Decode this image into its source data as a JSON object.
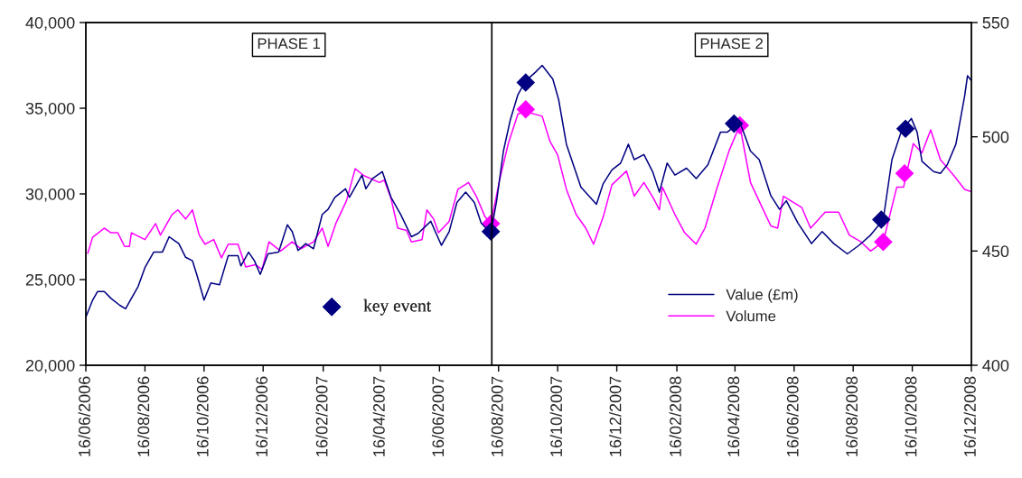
{
  "chart_data": {
    "type": "line",
    "annotations": [
      "PHASE 1",
      "PHASE 2"
    ],
    "legend": "bottom right",
    "grid": false,
    "ref_lines": [
      {
        "axis": "x",
        "value": "2007-08-09",
        "color": "#000000"
      }
    ],
    "xlim": [
      "2006-06-16",
      "2008-12-16"
    ],
    "xticks": [
      {
        "value": "2006-06-16",
        "label": "16/06/2006"
      },
      {
        "value": "2006-08-16",
        "label": "16/08/2006"
      },
      {
        "value": "2006-10-16",
        "label": "16/10/2006"
      },
      {
        "value": "2006-12-16",
        "label": "16/12/2006"
      },
      {
        "value": "2007-02-16",
        "label": "16/02/2007"
      },
      {
        "value": "2007-04-16",
        "label": "16/04/2007"
      },
      {
        "value": "2007-06-16",
        "label": "16/06/2007"
      },
      {
        "value": "2007-08-16",
        "label": "16/08/2007"
      },
      {
        "value": "2007-10-16",
        "label": "16/10/2007"
      },
      {
        "value": "2007-12-16",
        "label": "16/12/2007"
      },
      {
        "value": "2008-02-16",
        "label": "16/02/2008"
      },
      {
        "value": "2008-04-16",
        "label": "16/04/2008"
      },
      {
        "value": "2008-06-16",
        "label": "16/06/2008"
      },
      {
        "value": "2008-08-16",
        "label": "16/08/2008"
      },
      {
        "value": "2008-10-16",
        "label": "16/10/2008"
      },
      {
        "value": "2008-12-16",
        "label": "16/12/2008"
      }
    ],
    "ylim": [
      20000,
      40000
    ],
    "yticks": [
      {
        "value": 20000,
        "label": "20,000"
      },
      {
        "value": 25000,
        "label": "25,000"
      },
      {
        "value": 30000,
        "label": "30,000"
      },
      {
        "value": 35000,
        "label": "35,000"
      },
      {
        "value": 40000,
        "label": "40,000"
      }
    ],
    "y2lim": [
      400,
      550
    ],
    "y2ticks": [
      400,
      450,
      500,
      550
    ],
    "series": [
      {
        "name": "Value (£m)",
        "axis": "y",
        "color": "#000080",
        "x": [
          "2006-06-16",
          "2006-06-23",
          "2006-06-28",
          "2006-07-05",
          "2006-07-12",
          "2006-07-21",
          "2006-07-27",
          "2006-08-02",
          "2006-08-09",
          "2006-08-16",
          "2006-08-25",
          "2006-09-03",
          "2006-09-10",
          "2006-09-15",
          "2006-09-20",
          "2006-09-27",
          "2006-10-04",
          "2006-10-09",
          "2006-10-16",
          "2006-10-23",
          "2006-11-01",
          "2006-11-10",
          "2006-11-20",
          "2006-11-23",
          "2006-12-01",
          "2006-12-07",
          "2006-12-13",
          "2006-12-21",
          "2007-01-01",
          "2007-01-10",
          "2007-01-15",
          "2007-01-21",
          "2007-01-29",
          "2007-02-06",
          "2007-02-15",
          "2007-02-21",
          "2007-02-28",
          "2007-03-11",
          "2007-03-15",
          "2007-03-28",
          "2007-04-01",
          "2007-04-08",
          "2007-04-18",
          "2007-04-27",
          "2007-05-07",
          "2007-05-18",
          "2007-05-25",
          "2007-06-07",
          "2007-06-18",
          "2007-06-26",
          "2007-07-04",
          "2007-07-13",
          "2007-07-22",
          "2007-07-29",
          "2007-08-08",
          "2007-08-14",
          "2007-08-21",
          "2007-08-28",
          "2007-09-05",
          "2007-09-13",
          "2007-09-23",
          "2007-09-30",
          "2007-10-11",
          "2007-10-17",
          "2007-10-25",
          "2007-11-09",
          "2007-11-25",
          "2007-12-02",
          "2007-12-11",
          "2007-12-20",
          "2007-12-28",
          "2008-01-03",
          "2008-01-13",
          "2008-01-22",
          "2008-01-29",
          "2008-02-06",
          "2008-02-14",
          "2008-02-26",
          "2008-03-07",
          "2008-03-19",
          "2008-04-01",
          "2008-04-08",
          "2008-04-21",
          "2008-05-02",
          "2008-05-11",
          "2008-05-23",
          "2008-06-01",
          "2008-06-08",
          "2008-06-20",
          "2008-07-04",
          "2008-07-15",
          "2008-07-27",
          "2008-08-10",
          "2008-08-22",
          "2008-09-03",
          "2008-09-16",
          "2008-09-25",
          "2008-10-05",
          "2008-10-15",
          "2008-10-21",
          "2008-10-26",
          "2008-11-07",
          "2008-11-14",
          "2008-11-21",
          "2008-11-30",
          "2008-12-09",
          "2008-12-12",
          "2008-12-16"
        ],
        "values": [
          22800,
          23800,
          24300,
          24300,
          23900,
          23500,
          23300,
          23900,
          24600,
          25700,
          26600,
          26600,
          27500,
          27300,
          27100,
          26300,
          26100,
          25200,
          23800,
          24800,
          24700,
          26400,
          26400,
          25800,
          26600,
          26100,
          25300,
          26500,
          26600,
          28200,
          27800,
          26700,
          27100,
          26800,
          28800,
          29100,
          29800,
          30300,
          29800,
          31100,
          30300,
          30900,
          31300,
          29800,
          28800,
          27500,
          27700,
          28400,
          27000,
          27800,
          29500,
          30100,
          29500,
          28300,
          27700,
          29600,
          32500,
          34300,
          35800,
          36600,
          37100,
          37500,
          36700,
          35500,
          32900,
          30400,
          29400,
          30600,
          31400,
          31800,
          32900,
          32000,
          32300,
          31300,
          30100,
          31800,
          31100,
          31500,
          30900,
          31700,
          33600,
          33600,
          34200,
          32500,
          32000,
          29900,
          29100,
          29600,
          28300,
          27100,
          27800,
          27100,
          26500,
          27000,
          27600,
          28500,
          32000,
          33700,
          34400,
          33600,
          31900,
          31300,
          31200,
          31700,
          32900,
          35700,
          36900,
          36600
        ]
      },
      {
        "name": "Volume",
        "axis": "y2",
        "color": "#ff00ff",
        "x": [
          "2006-06-18",
          "2006-06-23",
          "2006-07-05",
          "2006-07-12",
          "2006-07-19",
          "2006-07-26",
          "2006-07-31",
          "2006-08-02",
          "2006-08-16",
          "2006-08-27",
          "2006-09-01",
          "2006-09-13",
          "2006-09-19",
          "2006-09-27",
          "2006-10-04",
          "2006-10-11",
          "2006-10-17",
          "2006-10-26",
          "2006-11-03",
          "2006-11-10",
          "2006-11-20",
          "2006-11-28",
          "2006-12-08",
          "2006-12-15",
          "2006-12-22",
          "2007-01-03",
          "2007-01-15",
          "2007-01-24",
          "2007-02-06",
          "2007-02-15",
          "2007-02-21",
          "2007-03-01",
          "2007-03-12",
          "2007-03-21",
          "2007-03-30",
          "2007-04-15",
          "2007-04-20",
          "2007-04-27",
          "2007-05-04",
          "2007-05-13",
          "2007-05-18",
          "2007-05-29",
          "2007-06-03",
          "2007-06-10",
          "2007-06-15",
          "2007-06-26",
          "2007-07-05",
          "2007-07-16",
          "2007-07-24",
          "2007-08-02",
          "2007-08-08",
          "2007-08-17",
          "2007-08-26",
          "2007-09-05",
          "2007-09-13",
          "2007-09-30",
          "2007-10-08",
          "2007-10-16",
          "2007-10-25",
          "2007-11-04",
          "2007-11-14",
          "2007-11-22",
          "2007-12-02",
          "2007-12-11",
          "2007-12-26",
          "2008-01-03",
          "2008-01-13",
          "2008-01-23",
          "2008-01-29",
          "2008-02-01",
          "2008-02-14",
          "2008-02-24",
          "2008-03-07",
          "2008-03-16",
          "2008-03-28",
          "2008-04-10",
          "2008-04-21",
          "2008-05-02",
          "2008-05-13",
          "2008-05-23",
          "2008-05-30",
          "2008-06-05",
          "2008-06-24",
          "2008-07-03",
          "2008-07-18",
          "2008-08-01",
          "2008-08-12",
          "2008-08-24",
          "2008-09-03",
          "2008-09-16",
          "2008-09-30",
          "2008-10-07",
          "2008-10-17",
          "2008-10-26",
          "2008-11-04",
          "2008-11-14",
          "2008-11-28",
          "2008-12-09",
          "2008-12-16"
        ],
        "values": [
          449,
          456,
          460,
          458,
          458,
          452,
          452,
          458,
          455,
          462,
          457,
          466,
          468,
          464,
          468,
          457,
          453,
          455,
          447,
          453,
          453,
          443,
          444,
          442,
          454,
          450,
          454,
          451,
          454,
          460,
          452,
          462,
          472,
          486,
          483,
          480,
          481,
          473,
          460,
          459,
          454,
          455,
          468,
          464,
          458,
          463,
          477,
          480,
          474,
          465,
          462,
          481,
          497,
          510,
          511,
          509,
          498,
          492,
          477,
          466,
          460,
          453,
          465,
          479,
          485,
          474,
          480,
          473,
          468,
          478,
          466,
          458,
          453,
          460,
          477,
          494,
          505,
          480,
          470,
          461,
          460,
          474,
          469,
          460,
          467,
          467,
          457,
          454,
          450,
          454,
          478,
          478,
          497,
          493,
          503,
          490,
          483,
          477,
          476
        ]
      },
      {
        "name": "key event",
        "type": "scatter",
        "axis": "y",
        "color": "#000080",
        "marker": "diamond",
        "x": [
          "2007-08-08",
          "2007-09-13",
          "2008-04-15",
          "2008-09-14",
          "2008-10-09"
        ],
        "values": [
          27800,
          36500,
          34100,
          28500,
          33800
        ]
      },
      {
        "type": "scatter",
        "axis": "y2",
        "color": "#ff00ff",
        "marker": "diamond",
        "x": [
          "2007-08-08",
          "2007-09-13",
          "2008-04-21",
          "2008-09-16",
          "2008-10-08"
        ],
        "values": [
          462,
          512,
          505,
          454,
          484
        ]
      }
    ]
  }
}
